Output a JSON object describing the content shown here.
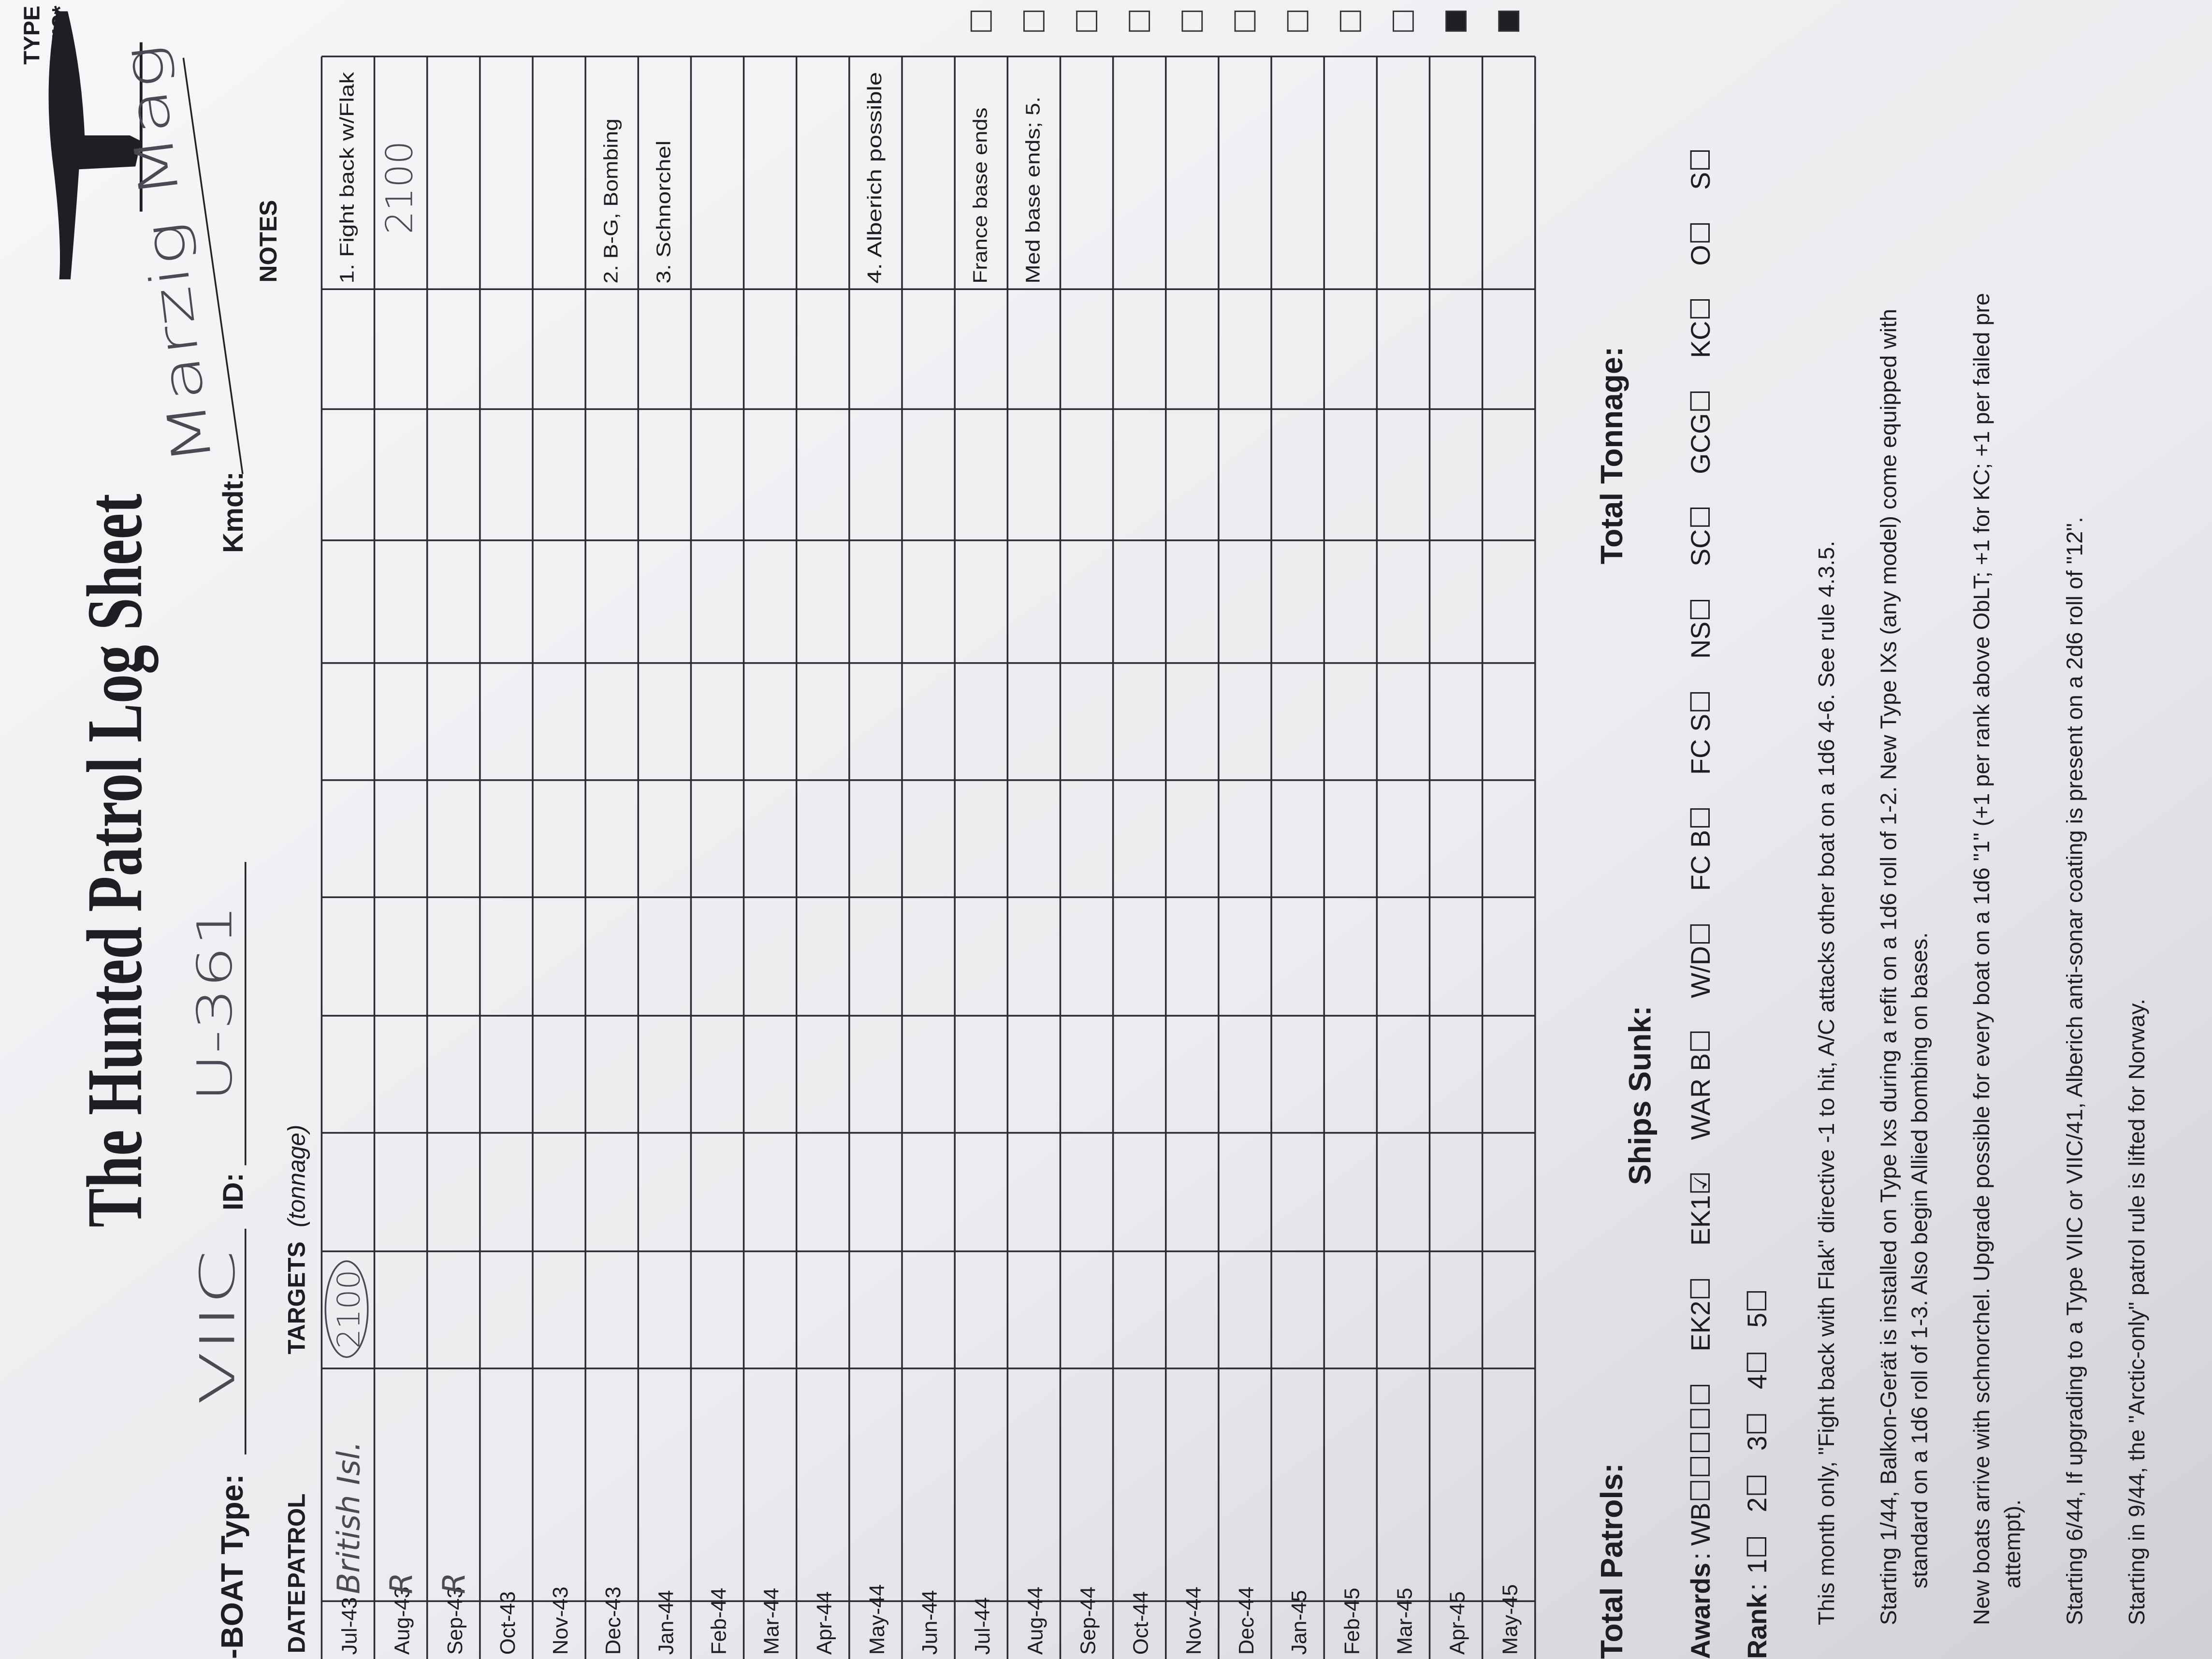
{
  "header": {
    "title": "The Hunted Patrol Log Sheet",
    "boat_type_label": "-BOAT Type:",
    "boat_type": "VIIC",
    "id_label": "ID:",
    "id": "U-361",
    "kmdt_label": "Kmdt:",
    "kmdt": "Marzig Mag"
  },
  "table": {
    "columns": {
      "date": "DATE",
      "patrol": "PATROL",
      "targets": "TARGETS",
      "targets_unit": "(tonnage)",
      "notes": "NOTES",
      "type": "TYPE",
      "type_sub": "XXI?*"
    },
    "rows": [
      {
        "date": "Jul-43",
        "patrol": "British Isl.",
        "target": "2100",
        "note": "1. Fight back w/Flak"
      },
      {
        "date": "Aug-43",
        "patrol": "R",
        "handwritten_note": "2100"
      },
      {
        "date": "Sep-43",
        "patrol": "R"
      },
      {
        "date": "Oct-43"
      },
      {
        "date": "Nov-43"
      },
      {
        "date": "Dec-43",
        "note": "2. B-G, Bombing"
      },
      {
        "date": "Jan-44",
        "note": "3. Schnorchel"
      },
      {
        "date": "Feb-44"
      },
      {
        "date": "Mar-44"
      },
      {
        "date": "Apr-44"
      },
      {
        "date": "May-44",
        "note": "4. Alberich possible"
      },
      {
        "date": "Jun-44"
      },
      {
        "date": "Jul-44",
        "note": "France base ends"
      },
      {
        "date": "Aug-44",
        "note": "Med base ends; 5."
      },
      {
        "date": "Sep-44"
      },
      {
        "date": "Oct-44"
      },
      {
        "date": "Nov-44"
      },
      {
        "date": "Dec-44"
      },
      {
        "date": "Jan-45"
      },
      {
        "date": "Feb-45"
      },
      {
        "date": "Mar-45"
      },
      {
        "date": "Apr-45"
      },
      {
        "date": "May-45"
      }
    ]
  },
  "footer": {
    "total_patrols": "Total Patrols:",
    "ships_sunk": "Ships Sunk:",
    "total_tonnage": "Total Tonnage:",
    "awards_label": "Awards",
    "awards": [
      "WB☐☐☐☐☐",
      "EK2☐",
      "EK1☑",
      "WAR B☐",
      "W/D☐",
      "FC B☐",
      "FC S☐",
      "NS☐",
      "SC☐",
      "GCG☐",
      "KC☐",
      "O☐",
      "S☐"
    ],
    "rank_label": "Rank",
    "ranks": [
      "1☐",
      "2☐",
      "3☐",
      "4☐",
      "5☐"
    ],
    "notes": [
      [
        "This month only, \"Fight back with Flak\" directive -1 to hit, A/C attacks other boat on a 1d6 4-6. See rule 4.3.5."
      ],
      [
        "Starting 1/44, Balkon-Gerät is installed on Type Ixs during a refit on a 1d6 roll of 1-2. New Type IXs (any model) come equipped with",
        "standard on a 1d6 roll of 1-3. Also begin Allied bombing on bases."
      ],
      [
        "New boats arrive with schnorchel. Upgrade possible for every boat on a 1d6 \"1\" (+1 per rank above ObLT; +1 for KC; +1 per failed pre",
        "attempt)."
      ],
      [
        "Starting 6/44, If upgrading to a Type VIIC or VIIC/41, Alberich anti-sonar coating is present on a 2d6 roll of \"12\"."
      ],
      [
        "Starting in 9/44, the \"Arctic-only\" patrol rule is lifted for Norway."
      ]
    ]
  }
}
